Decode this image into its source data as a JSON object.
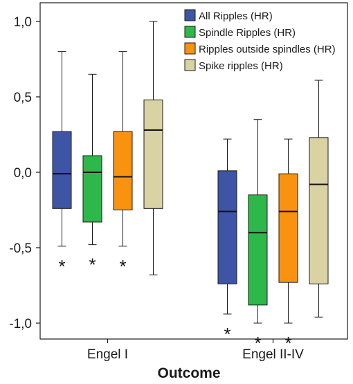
{
  "chart_data": {
    "type": "boxplot",
    "xlabel": "Outcome",
    "ylabel": "",
    "ylim": [
      -1.1,
      1.1
    ],
    "yticks": [
      "1,0",
      "0,5",
      "0,0",
      "-0,5",
      "-1,0"
    ],
    "ytick_values": [
      1.0,
      0.5,
      0.0,
      -0.5,
      -1.0
    ],
    "categories": [
      "Engel I",
      "Engel II-IV"
    ],
    "legend_position": "top-right",
    "grid": false,
    "significance_marker": "*",
    "series": [
      {
        "name": "All Ripples (HR)",
        "color": "#3e55a5",
        "boxes": [
          {
            "min": -0.49,
            "q1": -0.24,
            "median": -0.01,
            "q3": 0.27,
            "max": 0.8,
            "significant": true
          },
          {
            "min": -0.94,
            "q1": -0.74,
            "median": -0.26,
            "q3": 0.01,
            "max": 0.22,
            "significant": true
          }
        ]
      },
      {
        "name": "Spindle Ripples (HR)",
        "color": "#2eb84a",
        "boxes": [
          {
            "min": -0.48,
            "q1": -0.33,
            "median": 0.0,
            "q3": 0.11,
            "max": 0.65,
            "significant": true
          },
          {
            "min": -1.0,
            "q1": -0.88,
            "median": -0.4,
            "q3": -0.15,
            "max": 0.35,
            "significant": true
          }
        ]
      },
      {
        "name": "Ripples outside spindles (HR)",
        "color": "#f9930f",
        "boxes": [
          {
            "min": -0.49,
            "q1": -0.25,
            "median": -0.03,
            "q3": 0.27,
            "max": 0.8,
            "significant": true
          },
          {
            "min": -1.0,
            "q1": -0.73,
            "median": -0.26,
            "q3": -0.01,
            "max": 0.22,
            "significant": true
          }
        ]
      },
      {
        "name": "Spike ripples (HR)",
        "color": "#d9d3a3",
        "boxes": [
          {
            "min": -0.68,
            "q1": -0.24,
            "median": 0.28,
            "q3": 0.48,
            "max": 1.0,
            "significant": false
          },
          {
            "min": -0.96,
            "q1": -0.74,
            "median": -0.08,
            "q3": 0.23,
            "max": 0.61,
            "significant": false
          }
        ]
      }
    ]
  }
}
